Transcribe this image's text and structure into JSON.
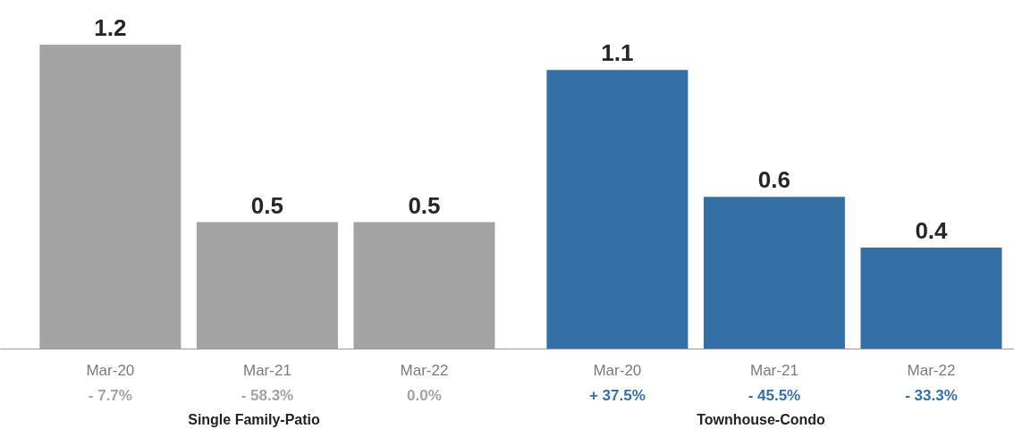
{
  "chart_data": [
    {
      "type": "bar",
      "xlabel": "Single Family-Patio",
      "categories": [
        "Mar-20",
        "Mar-21",
        "Mar-22"
      ],
      "values": [
        1.2,
        0.5,
        0.5
      ],
      "color": "#a3a3a3",
      "data_labels": true,
      "tick_labels": "x",
      "annotations": [
        "- 7.7%",
        "- 58.3%",
        "0.0%"
      ]
    },
    {
      "type": "bar",
      "xlabel": "Townhouse-Condo",
      "categories": [
        "Mar-20",
        "Mar-21",
        "Mar-22"
      ],
      "values": [
        1.1,
        0.6,
        0.4
      ],
      "color": "#3470a6",
      "data_labels": true,
      "tick_labels": "x",
      "annotations": [
        "+ 37.5%",
        "- 45.5%",
        "- 33.3%"
      ]
    }
  ]
}
